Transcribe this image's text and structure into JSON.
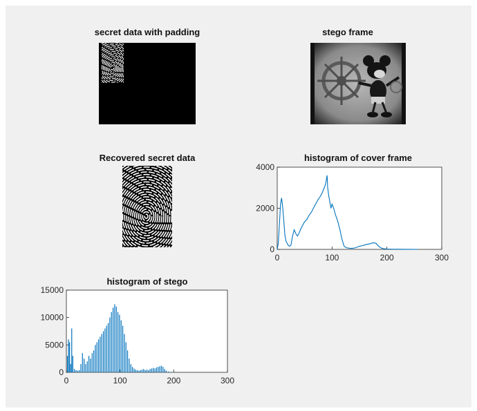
{
  "figure": {
    "panels": {
      "secret": {
        "title": "secret data with padding"
      },
      "stego_frame": {
        "title": "stego frame"
      },
      "recovered": {
        "title": "Recovered secret data"
      }
    }
  },
  "chart_data": [
    {
      "type": "line",
      "title": "histogram of cover frame",
      "xlabel": "",
      "ylabel": "",
      "xlim": [
        0,
        300
      ],
      "ylim": [
        0,
        4000
      ],
      "xticks": [
        0,
        100,
        200,
        300
      ],
      "yticks": [
        0,
        2000,
        4000
      ],
      "line_color": "#0072bd",
      "series": [
        {
          "x": [
            0,
            2,
            4,
            6,
            8,
            10,
            12,
            14,
            16,
            18,
            20,
            22,
            25,
            28,
            31,
            34,
            37,
            40,
            43,
            46,
            50,
            54,
            58,
            62,
            66,
            70,
            74,
            78,
            82,
            85,
            88,
            90,
            91,
            92,
            94,
            96,
            98,
            100,
            103,
            106,
            110,
            114,
            118,
            122,
            126,
            130,
            135,
            140,
            145,
            150,
            155,
            160,
            165,
            170,
            175,
            180,
            185,
            190,
            195,
            200,
            210,
            220,
            240,
            256
          ],
          "y": [
            0,
            300,
            1200,
            2200,
            2500,
            2050,
            1400,
            700,
            400,
            300,
            200,
            150,
            200,
            650,
            950,
            760,
            650,
            800,
            1000,
            1150,
            1350,
            1450,
            1650,
            1800,
            2000,
            2200,
            2400,
            2550,
            2750,
            2950,
            3150,
            3450,
            3600,
            3000,
            2600,
            2300,
            2000,
            2200,
            2000,
            1700,
            1400,
            1000,
            500,
            150,
            80,
            60,
            50,
            60,
            100,
            150,
            180,
            220,
            250,
            280,
            320,
            300,
            150,
            60,
            30,
            15,
            8,
            5,
            3,
            0
          ]
        }
      ]
    },
    {
      "type": "bar",
      "title": "histogram of stego",
      "xlabel": "",
      "ylabel": "",
      "xlim": [
        0,
        300
      ],
      "ylim": [
        0,
        15000
      ],
      "xticks": [
        0,
        100,
        200,
        300
      ],
      "yticks": [
        0,
        5000,
        10000,
        15000
      ],
      "bar_color": "#0072bd",
      "series": [
        {
          "x": [
            2,
            4,
            6,
            8,
            10,
            12,
            15,
            18,
            21,
            24,
            27,
            30,
            33,
            36,
            39,
            42,
            45,
            48,
            51,
            54,
            57,
            60,
            63,
            66,
            69,
            72,
            75,
            78,
            81,
            84,
            87,
            90,
            93,
            96,
            99,
            102,
            105,
            108,
            111,
            114,
            117,
            120,
            123,
            126,
            129,
            132,
            135,
            138,
            141,
            144,
            147,
            150,
            153,
            156,
            159,
            162,
            165,
            168,
            171,
            174,
            177,
            180,
            183,
            186,
            190,
            195,
            200,
            210,
            220,
            230,
            240,
            250,
            256
          ],
          "y": [
            3000,
            6000,
            5500,
            1500,
            8000,
            3000,
            600,
            400,
            300,
            400,
            1500,
            3500,
            2500,
            1500,
            2000,
            3000,
            2500,
            3500,
            4000,
            5000,
            5500,
            6000,
            6500,
            7000,
            7500,
            8000,
            8500,
            9000,
            10000,
            11000,
            11800,
            12400,
            12000,
            11000,
            10500,
            9500,
            8500,
            7000,
            5500,
            4000,
            2500,
            1500,
            1000,
            700,
            500,
            400,
            300,
            400,
            500,
            600,
            400,
            500,
            400,
            600,
            700,
            800,
            700,
            900,
            1000,
            1100,
            1200,
            1000,
            600,
            300,
            150,
            80,
            50,
            30,
            20,
            10,
            5,
            3,
            2
          ]
        }
      ]
    }
  ]
}
